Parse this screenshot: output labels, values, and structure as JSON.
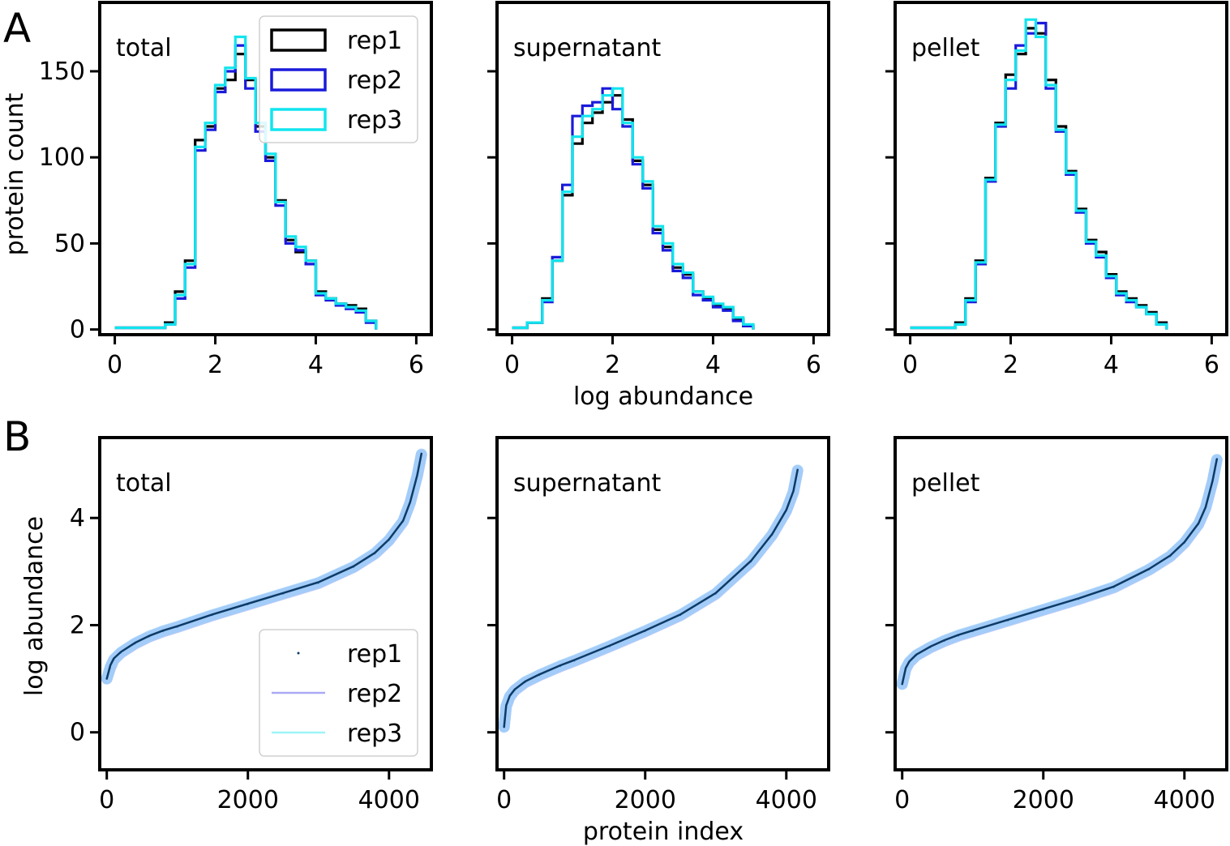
{
  "panel_labels": [
    "A",
    "B"
  ],
  "row_a": {
    "ylabel": "protein count",
    "xlabel": "log abundance",
    "xticks": [
      "0",
      "2",
      "4",
      "6"
    ],
    "yticks": [
      "0",
      "50",
      "100",
      "150"
    ]
  },
  "row_b": {
    "ylabel": "log abundance",
    "xlabel": "protein index",
    "xticks": [
      "0",
      "2000",
      "4000"
    ],
    "yticks": [
      "0",
      "2",
      "4"
    ]
  },
  "series_colors": {
    "rep1": "#000000",
    "rep2": "#1a1adb",
    "rep3": "#11e5ee",
    "rep1_line": "#0d3b66",
    "rep2_line": "#a9a9f5",
    "rep3_line": "#9ef5f7",
    "rep3_band": "#7ec8f8"
  },
  "legend_a": [
    "rep1",
    "rep2",
    "rep3"
  ],
  "legend_b": [
    "rep1",
    "rep2",
    "rep3"
  ],
  "chart_data": [
    {
      "type": "line",
      "step": true,
      "title": "total",
      "xlabel": "log abundance",
      "ylabel": "protein count",
      "xlim": [
        -0.3,
        6.3
      ],
      "ylim": [
        -3,
        190
      ],
      "series": [
        {
          "name": "rep1",
          "x": [
            0,
            0.5,
            1,
            1.2,
            1.4,
            1.6,
            1.8,
            2,
            2.2,
            2.4,
            2.6,
            2.8,
            3,
            3.2,
            3.4,
            3.6,
            3.8,
            4,
            4.2,
            4.4,
            4.6,
            4.8,
            5,
            5.2
          ],
          "values": [
            1,
            1,
            4,
            22,
            40,
            110,
            118,
            140,
            145,
            160,
            145,
            118,
            100,
            75,
            52,
            45,
            40,
            22,
            18,
            15,
            14,
            12,
            5,
            0
          ]
        },
        {
          "name": "rep2",
          "x": [
            0,
            0.5,
            1,
            1.2,
            1.4,
            1.6,
            1.8,
            2,
            2.2,
            2.4,
            2.6,
            2.8,
            3,
            3.2,
            3.4,
            3.6,
            3.8,
            4,
            4.2,
            4.4,
            4.6,
            4.8,
            5,
            5.2
          ],
          "values": [
            1,
            1,
            3,
            18,
            36,
            104,
            116,
            138,
            150,
            165,
            140,
            115,
            98,
            72,
            50,
            46,
            38,
            20,
            17,
            14,
            12,
            10,
            4,
            0
          ]
        },
        {
          "name": "rep3",
          "x": [
            0,
            0.5,
            1,
            1.2,
            1.4,
            1.6,
            1.8,
            2,
            2.2,
            2.4,
            2.6,
            2.8,
            3,
            3.2,
            3.4,
            3.6,
            3.8,
            4,
            4.2,
            4.4,
            4.6,
            4.8,
            5,
            5.2
          ],
          "values": [
            1,
            1,
            3,
            20,
            38,
            106,
            120,
            142,
            152,
            170,
            146,
            120,
            102,
            74,
            54,
            48,
            40,
            21,
            18,
            15,
            13,
            11,
            5,
            0
          ]
        }
      ]
    },
    {
      "type": "line",
      "step": true,
      "title": "supernatant",
      "xlabel": "log abundance",
      "ylabel": "protein count",
      "xlim": [
        -0.3,
        6.3
      ],
      "ylim": [
        -3,
        190
      ],
      "series": [
        {
          "name": "rep1",
          "x": [
            0,
            0.3,
            0.6,
            0.8,
            1,
            1.2,
            1.4,
            1.6,
            1.8,
            2,
            2.2,
            2.4,
            2.6,
            2.8,
            3,
            3.2,
            3.4,
            3.6,
            3.8,
            4,
            4.2,
            4.4,
            4.6,
            4.8
          ],
          "values": [
            1,
            4,
            18,
            40,
            78,
            108,
            120,
            126,
            132,
            136,
            122,
            98,
            84,
            58,
            48,
            36,
            32,
            22,
            18,
            14,
            12,
            6,
            2,
            0
          ]
        },
        {
          "name": "rep2",
          "x": [
            0,
            0.3,
            0.6,
            0.8,
            1,
            1.2,
            1.4,
            1.6,
            1.8,
            2,
            2.2,
            2.4,
            2.6,
            2.8,
            3,
            3.2,
            3.4,
            3.6,
            3.8,
            4,
            4.2,
            4.4,
            4.6,
            4.8
          ],
          "values": [
            1,
            4,
            16,
            42,
            84,
            124,
            130,
            132,
            140,
            128,
            118,
            96,
            82,
            56,
            46,
            34,
            30,
            20,
            17,
            13,
            11,
            5,
            2,
            0
          ]
        },
        {
          "name": "rep3",
          "x": [
            0,
            0.3,
            0.6,
            0.8,
            1,
            1.2,
            1.4,
            1.6,
            1.8,
            2,
            2.2,
            2.4,
            2.6,
            2.8,
            3,
            3.2,
            3.4,
            3.6,
            3.8,
            4,
            4.2,
            4.4,
            4.6,
            4.8
          ],
          "values": [
            1,
            4,
            17,
            40,
            80,
            112,
            124,
            128,
            136,
            140,
            120,
            100,
            86,
            60,
            50,
            38,
            33,
            22,
            19,
            15,
            13,
            7,
            3,
            0
          ]
        }
      ]
    },
    {
      "type": "line",
      "step": true,
      "title": "pellet",
      "xlabel": "log abundance",
      "ylabel": "protein count",
      "xlim": [
        -0.3,
        6.3
      ],
      "ylim": [
        -3,
        190
      ],
      "series": [
        {
          "name": "rep1",
          "x": [
            0,
            0.5,
            0.9,
            1.1,
            1.3,
            1.5,
            1.7,
            1.9,
            2.1,
            2.3,
            2.5,
            2.7,
            2.9,
            3.1,
            3.3,
            3.5,
            3.7,
            3.9,
            4.1,
            4.3,
            4.5,
            4.7,
            4.9,
            5.1
          ],
          "values": [
            1,
            1,
            4,
            18,
            40,
            88,
            120,
            148,
            160,
            175,
            172,
            145,
            118,
            92,
            70,
            52,
            45,
            32,
            22,
            18,
            14,
            10,
            4,
            0
          ]
        },
        {
          "name": "rep2",
          "x": [
            0,
            0.5,
            0.9,
            1.1,
            1.3,
            1.5,
            1.7,
            1.9,
            2.1,
            2.3,
            2.5,
            2.7,
            2.9,
            3.1,
            3.3,
            3.5,
            3.7,
            3.9,
            4.1,
            4.3,
            4.5,
            4.7,
            4.9,
            5.1
          ],
          "values": [
            1,
            1,
            3,
            16,
            38,
            86,
            118,
            140,
            165,
            172,
            178,
            140,
            115,
            90,
            68,
            50,
            42,
            30,
            20,
            16,
            13,
            9,
            3,
            0
          ]
        },
        {
          "name": "rep3",
          "x": [
            0,
            0.5,
            0.9,
            1.1,
            1.3,
            1.5,
            1.7,
            1.9,
            2.1,
            2.3,
            2.5,
            2.7,
            2.9,
            3.1,
            3.3,
            3.5,
            3.7,
            3.9,
            4.1,
            4.3,
            4.5,
            4.7,
            4.9,
            5.1
          ],
          "values": [
            1,
            1,
            3,
            17,
            39,
            87,
            119,
            145,
            162,
            180,
            170,
            142,
            116,
            91,
            69,
            51,
            43,
            31,
            21,
            17,
            13,
            9,
            3,
            0
          ]
        }
      ]
    },
    {
      "type": "line",
      "title": "total",
      "xlabel": "protein index",
      "ylabel": "log abundance",
      "xlim": [
        -100,
        4600
      ],
      "ylim": [
        -0.7,
        5.5
      ],
      "series": [
        {
          "name": "rep1",
          "x": [
            0,
            50,
            100,
            200,
            400,
            600,
            800,
            1000,
            1500,
            2000,
            2500,
            3000,
            3500,
            3800,
            4000,
            4200,
            4300,
            4400,
            4460
          ],
          "values": [
            1.0,
            1.25,
            1.38,
            1.5,
            1.67,
            1.8,
            1.9,
            1.98,
            2.2,
            2.4,
            2.6,
            2.8,
            3.1,
            3.35,
            3.6,
            3.95,
            4.3,
            4.8,
            5.2
          ]
        },
        {
          "name": "rep2",
          "x": [
            0,
            50,
            100,
            200,
            400,
            600,
            800,
            1000,
            1500,
            2000,
            2500,
            3000,
            3500,
            3800,
            4000,
            4200,
            4300,
            4400,
            4460
          ],
          "values": [
            1.0,
            1.2,
            1.35,
            1.48,
            1.65,
            1.78,
            1.88,
            1.96,
            2.18,
            2.38,
            2.58,
            2.78,
            3.08,
            3.33,
            3.58,
            3.93,
            4.28,
            4.78,
            5.18
          ]
        },
        {
          "name": "rep3",
          "x": [
            0,
            50,
            100,
            200,
            400,
            600,
            800,
            1000,
            1500,
            2000,
            2500,
            3000,
            3500,
            3800,
            4000,
            4200,
            4300,
            4400,
            4460
          ],
          "values": [
            1.0,
            1.22,
            1.36,
            1.49,
            1.66,
            1.79,
            1.89,
            1.97,
            2.19,
            2.39,
            2.59,
            2.79,
            3.09,
            3.34,
            3.59,
            3.94,
            4.29,
            4.79,
            5.19
          ]
        }
      ]
    },
    {
      "type": "line",
      "title": "supernatant",
      "xlabel": "protein index",
      "ylabel": "log abundance",
      "xlim": [
        -100,
        4600
      ],
      "ylim": [
        -0.7,
        5.5
      ],
      "series": [
        {
          "name": "rep1",
          "x": [
            0,
            30,
            80,
            150,
            300,
            500,
            800,
            1000,
            1500,
            2000,
            2500,
            3000,
            3500,
            3800,
            4000,
            4100,
            4160
          ],
          "values": [
            0.1,
            0.5,
            0.68,
            0.8,
            0.95,
            1.08,
            1.25,
            1.35,
            1.62,
            1.9,
            2.2,
            2.6,
            3.2,
            3.7,
            4.15,
            4.5,
            4.9
          ]
        },
        {
          "name": "rep2",
          "x": [
            0,
            30,
            80,
            150,
            300,
            500,
            800,
            1000,
            1500,
            2000,
            2500,
            3000,
            3500,
            3800,
            4000,
            4100,
            4160
          ],
          "values": [
            0.1,
            0.48,
            0.66,
            0.78,
            0.93,
            1.06,
            1.23,
            1.33,
            1.6,
            1.88,
            2.18,
            2.58,
            3.18,
            3.68,
            4.13,
            4.48,
            4.88
          ]
        },
        {
          "name": "rep3",
          "x": [
            0,
            30,
            80,
            150,
            300,
            500,
            800,
            1000,
            1500,
            2000,
            2500,
            3000,
            3500,
            3800,
            4000,
            4100,
            4160
          ],
          "values": [
            0.1,
            0.49,
            0.67,
            0.79,
            0.94,
            1.07,
            1.24,
            1.34,
            1.61,
            1.89,
            2.19,
            2.59,
            3.19,
            3.69,
            4.14,
            4.49,
            4.89
          ]
        }
      ]
    },
    {
      "type": "line",
      "title": "pellet",
      "xlabel": "protein index",
      "ylabel": "log abundance",
      "xlim": [
        -100,
        4600
      ],
      "ylim": [
        -0.7,
        5.5
      ],
      "series": [
        {
          "name": "rep1",
          "x": [
            0,
            50,
            100,
            200,
            400,
            600,
            800,
            1000,
            1500,
            2000,
            2500,
            3000,
            3500,
            3800,
            4000,
            4200,
            4300,
            4400,
            4460
          ],
          "values": [
            0.9,
            1.2,
            1.32,
            1.45,
            1.6,
            1.72,
            1.82,
            1.9,
            2.1,
            2.3,
            2.5,
            2.72,
            3.05,
            3.3,
            3.55,
            3.9,
            4.2,
            4.7,
            5.1
          ]
        },
        {
          "name": "rep2",
          "x": [
            0,
            50,
            100,
            200,
            400,
            600,
            800,
            1000,
            1500,
            2000,
            2500,
            3000,
            3500,
            3800,
            4000,
            4200,
            4300,
            4400,
            4460
          ],
          "values": [
            0.9,
            1.18,
            1.3,
            1.43,
            1.58,
            1.7,
            1.8,
            1.88,
            2.08,
            2.28,
            2.48,
            2.7,
            3.03,
            3.28,
            3.53,
            3.88,
            4.18,
            4.68,
            5.08
          ]
        },
        {
          "name": "rep3",
          "x": [
            0,
            50,
            100,
            200,
            400,
            600,
            800,
            1000,
            1500,
            2000,
            2500,
            3000,
            3500,
            3800,
            4000,
            4200,
            4300,
            4400,
            4460
          ],
          "values": [
            0.9,
            1.19,
            1.31,
            1.44,
            1.59,
            1.71,
            1.81,
            1.89,
            2.09,
            2.29,
            2.49,
            2.71,
            3.04,
            3.29,
            3.54,
            3.89,
            4.19,
            4.69,
            5.09
          ]
        }
      ]
    }
  ]
}
